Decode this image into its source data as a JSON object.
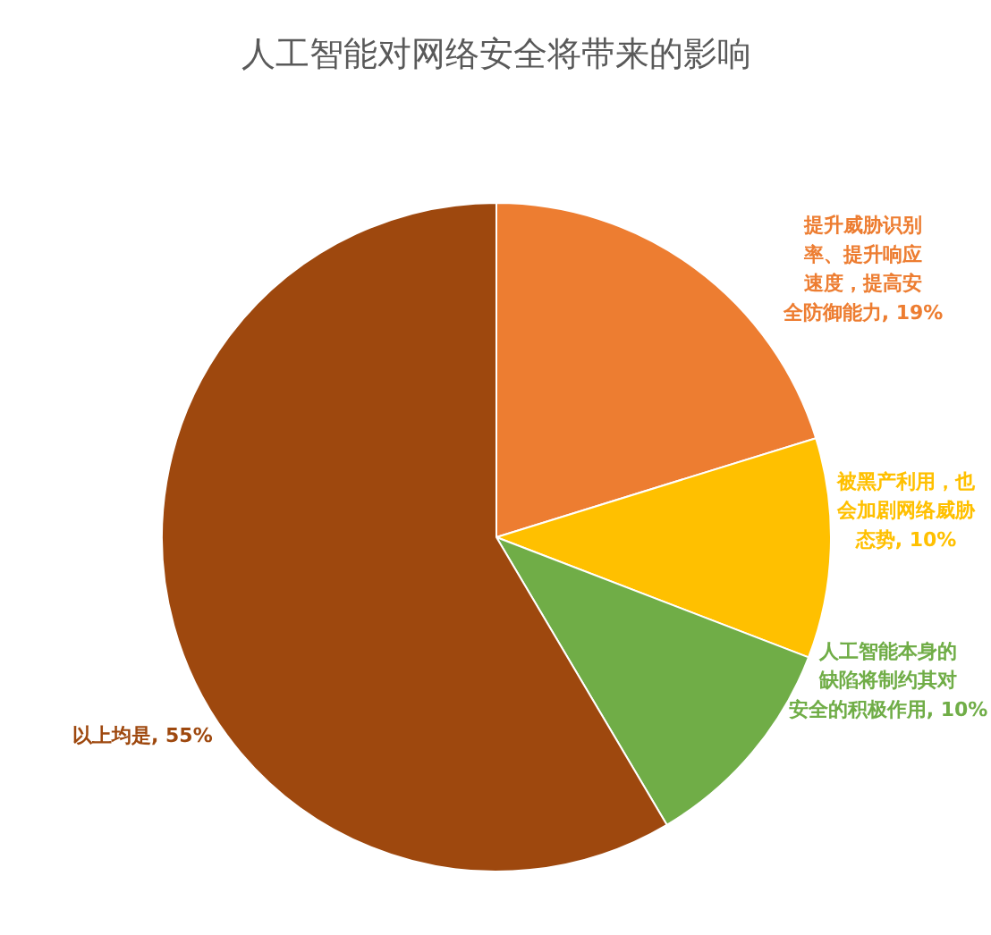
{
  "chart_data": {
    "type": "pie",
    "title": "人工智能对网络安全将带来的影响",
    "categories": [
      "提升威胁识别率、提升响应速度，提高安全防御能力",
      "被黑产利用，也会加剧网络威胁态势",
      "人工智能本身的缺陷将制约其对安全的积极作用",
      "以上均是"
    ],
    "values": [
      19,
      10,
      10,
      55
    ],
    "value_labels": [
      "19%",
      "10%",
      "10%",
      "55%"
    ],
    "colors": [
      "#ed7d31",
      "#ffc000",
      "#70ad47",
      "#9e480e"
    ]
  }
}
